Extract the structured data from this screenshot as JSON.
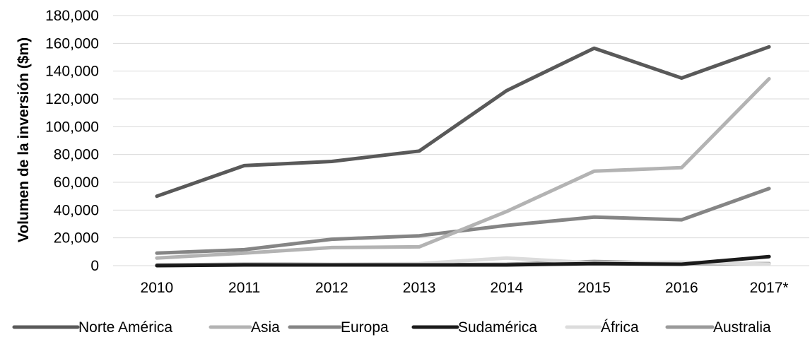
{
  "chart_data": {
    "type": "line",
    "title": "",
    "xlabel": "",
    "ylabel": "Volumen de la inversión ($m)",
    "categories": [
      "2010",
      "2011",
      "2012",
      "2013",
      "2014",
      "2015",
      "2016",
      "2017*"
    ],
    "ylim": [
      0,
      180000
    ],
    "y_ticks": [
      0,
      20000,
      40000,
      60000,
      80000,
      100000,
      120000,
      140000,
      160000,
      180000
    ],
    "y_tick_labels": [
      "0",
      "20,000",
      "40,000",
      "60,000",
      "80,000",
      "100,000",
      "120,000",
      "140,000",
      "160,000",
      "180,000"
    ],
    "grid": true,
    "legend_position": "bottom",
    "series": [
      {
        "name": "Norte América",
        "color": "#595959",
        "values": [
          50000,
          72000,
          75000,
          82500,
          126000,
          156500,
          135000,
          157500
        ]
      },
      {
        "name": "Asia",
        "color": "#b3b3b3",
        "values": [
          5500,
          9000,
          13000,
          13500,
          39000,
          68000,
          70500,
          134500
        ]
      },
      {
        "name": "Europa",
        "color": "#858585",
        "values": [
          9000,
          11500,
          19000,
          21500,
          29000,
          35000,
          33000,
          55500
        ]
      },
      {
        "name": "Sudamérica",
        "color": "#1a1a1a",
        "values": [
          0,
          500,
          500,
          500,
          500,
          1500,
          1000,
          6500
        ]
      },
      {
        "name": "África",
        "color": "#dcdcdc",
        "values": [
          0,
          500,
          1000,
          1500,
          5500,
          2000,
          2500,
          1000
        ]
      },
      {
        "name": "Australia",
        "color": "#9a9a9a",
        "values": [
          500,
          1000,
          1000,
          500,
          1000,
          3000,
          1500,
          1500
        ]
      }
    ]
  }
}
